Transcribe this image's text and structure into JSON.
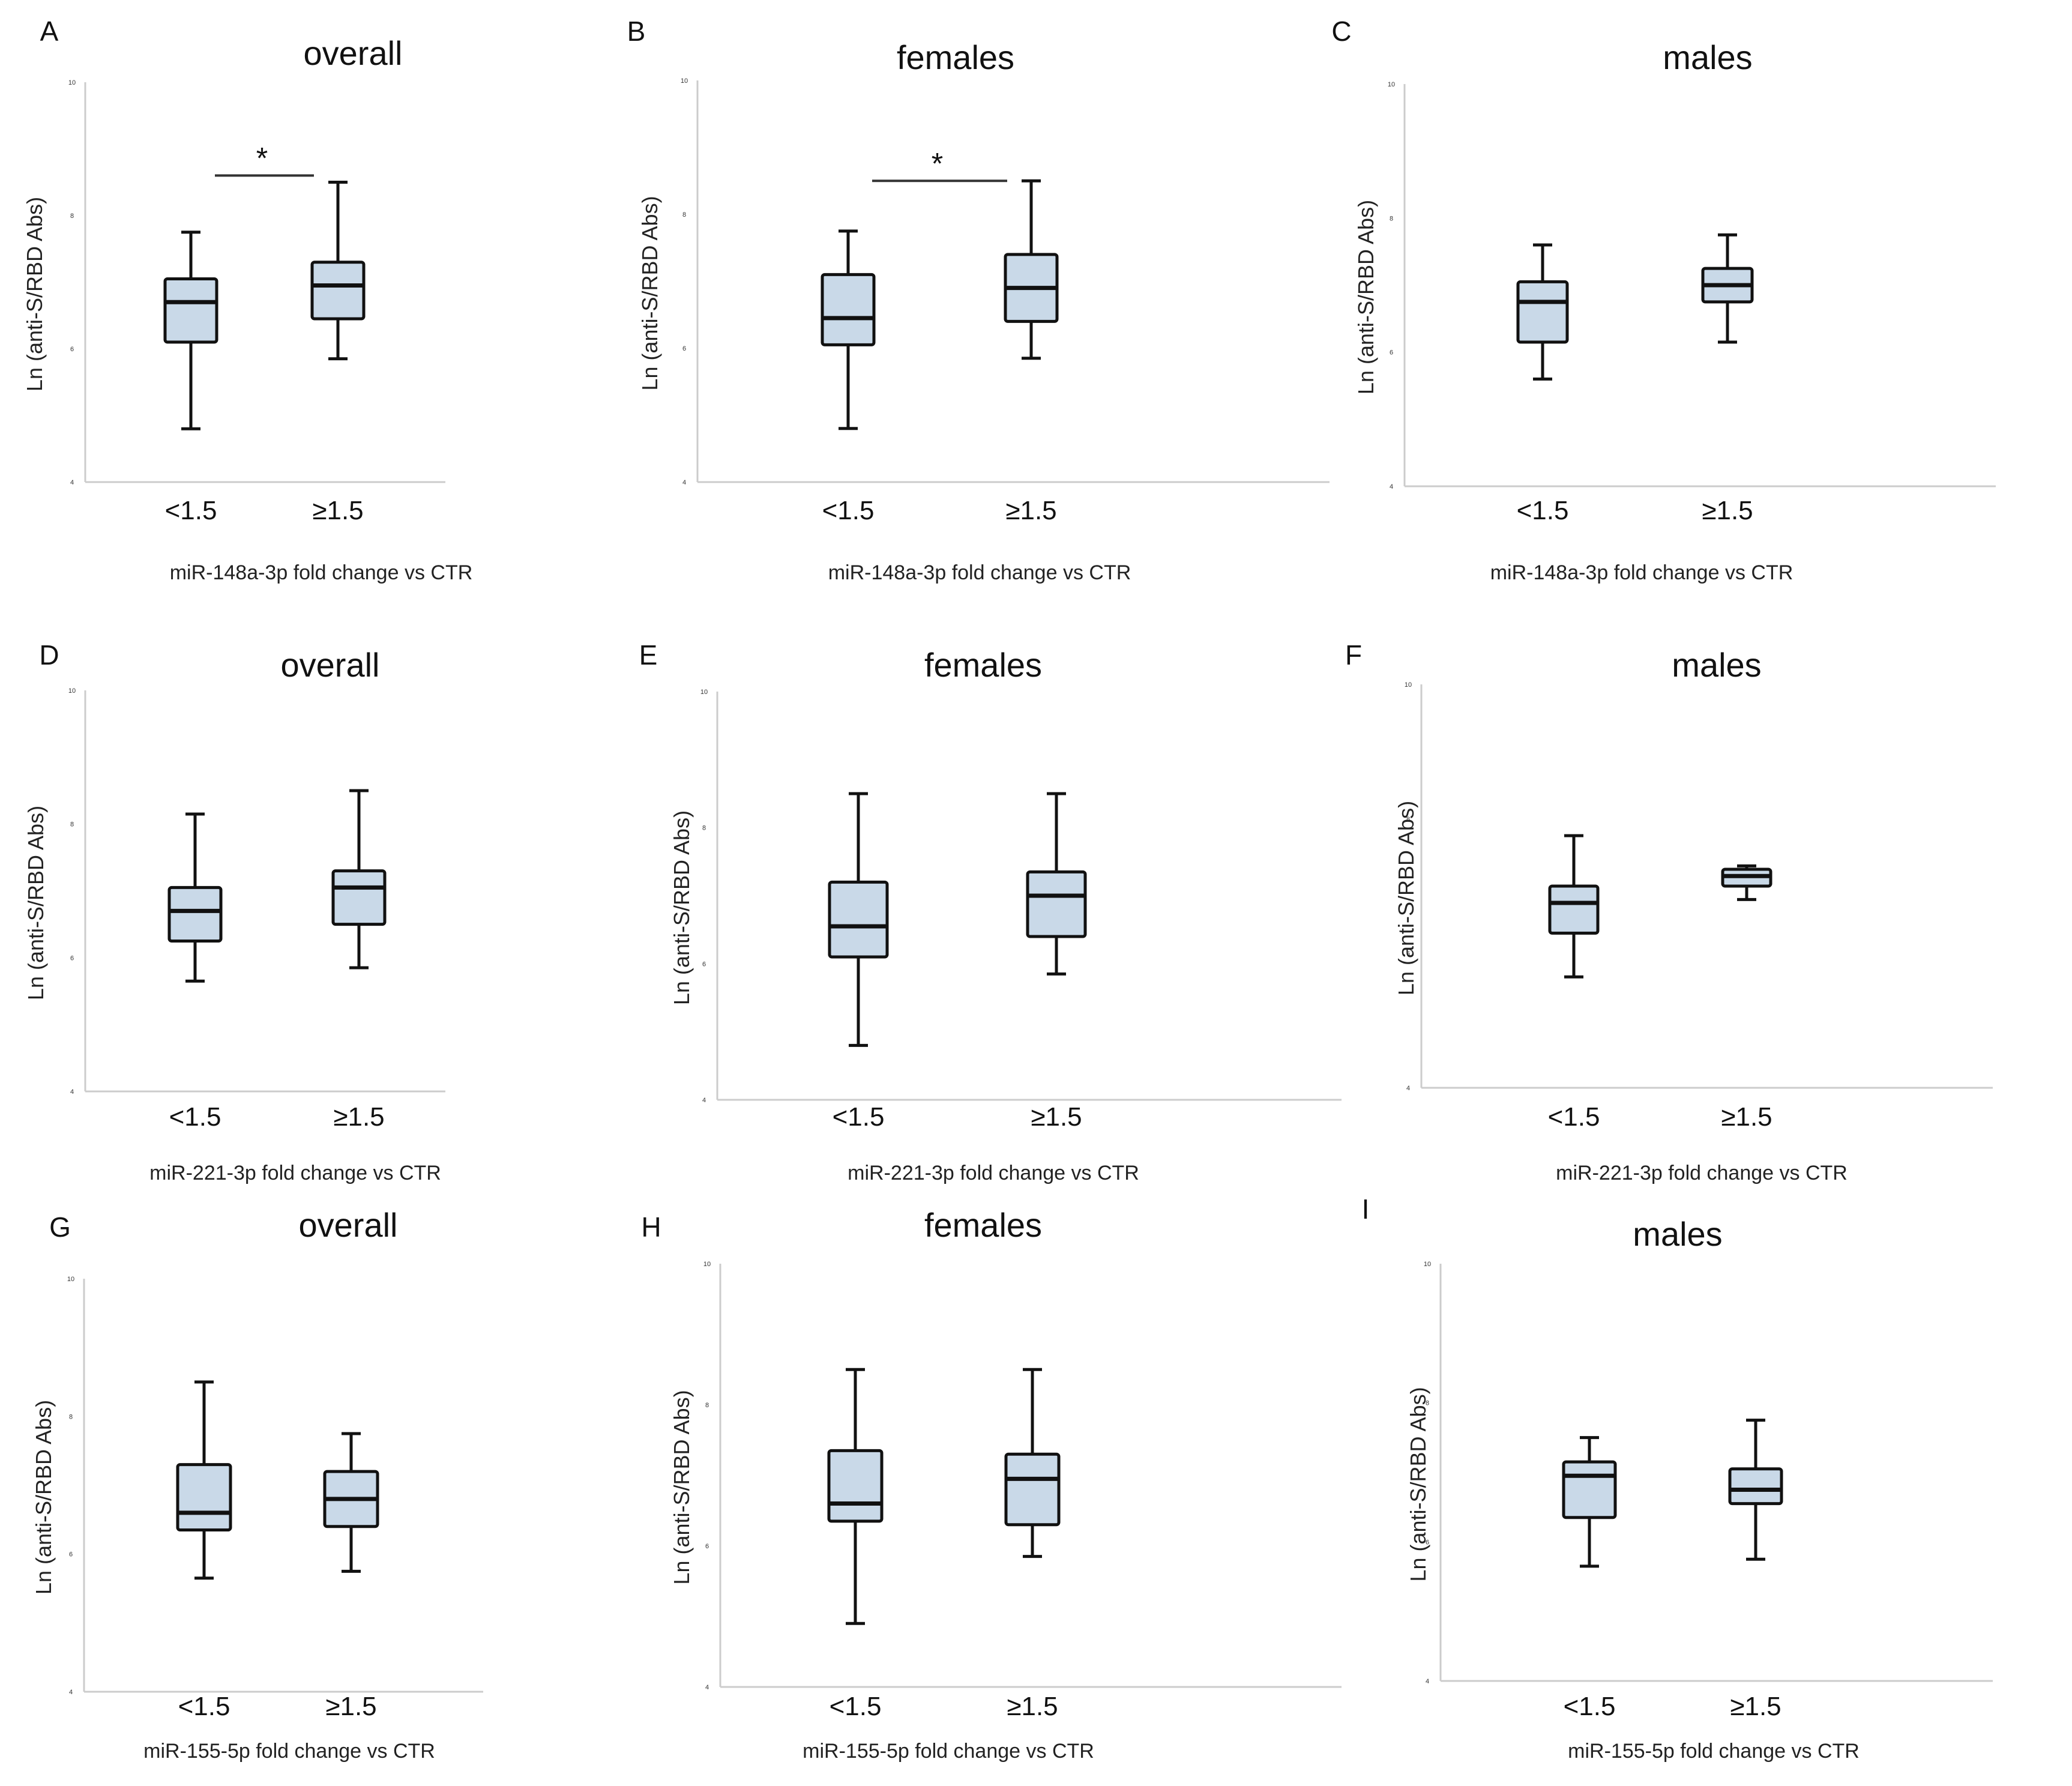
{
  "figure": {
    "background": "#ffffff",
    "box_fill": "#c9d9e8",
    "line_color": "#111111",
    "axis_color": "#cccccc"
  },
  "chart_data": [
    {
      "panel": "A",
      "title": "overall",
      "type": "boxplot",
      "ylabel": "Ln (anti-S/RBD Abs)",
      "xlabel": "miR-148a-3p fold change vs CTR",
      "ylim": [
        4,
        10
      ],
      "yticks": [
        "4",
        "6",
        "8",
        "10"
      ],
      "categories": [
        "<1.5",
        "≥1.5"
      ],
      "boxes": [
        {
          "min": 4.8,
          "q1": 6.1,
          "median": 6.7,
          "q3": 7.05,
          "max": 7.75
        },
        {
          "min": 5.85,
          "q1": 6.45,
          "median": 6.95,
          "q3": 7.3,
          "max": 8.5
        }
      ],
      "significance": {
        "label": "*",
        "y": 8.6
      }
    },
    {
      "panel": "B",
      "title": "females",
      "type": "boxplot",
      "ylabel": "Ln (anti-S/RBD Abs)",
      "xlabel": "miR-148a-3p fold change vs CTR",
      "ylim": [
        4,
        10
      ],
      "yticks": [
        "4",
        "6",
        "8",
        "10"
      ],
      "categories": [
        "<1.5",
        "≥1.5"
      ],
      "boxes": [
        {
          "min": 4.8,
          "q1": 6.05,
          "median": 6.45,
          "q3": 7.1,
          "max": 7.75
        },
        {
          "min": 5.85,
          "q1": 6.4,
          "median": 6.9,
          "q3": 7.4,
          "max": 8.5
        }
      ],
      "significance": {
        "label": "*",
        "y": 8.5
      }
    },
    {
      "panel": "C",
      "title": "males",
      "type": "boxplot",
      "ylabel": "Ln (anti-S/RBD Abs)",
      "xlabel": "miR-148a-3p fold change vs CTR",
      "ylim": [
        4,
        10
      ],
      "yticks": [
        "4",
        "6",
        "8",
        "10"
      ],
      "categories": [
        "<1.5",
        "≥1.5"
      ],
      "boxes": [
        {
          "min": 5.6,
          "q1": 6.15,
          "median": 6.75,
          "q3": 7.05,
          "max": 7.6
        },
        {
          "min": 6.15,
          "q1": 6.75,
          "median": 7.0,
          "q3": 7.25,
          "max": 7.75
        }
      ]
    },
    {
      "panel": "D",
      "title": "overall",
      "type": "boxplot",
      "ylabel": "Ln (anti-S/RBD Abs)",
      "xlabel": "miR-221-3p fold change vs CTR",
      "ylim": [
        4,
        10
      ],
      "yticks": [
        "4",
        "6",
        "8",
        "10"
      ],
      "categories": [
        "<1.5",
        "≥1.5"
      ],
      "boxes": [
        {
          "min": 5.65,
          "q1": 6.25,
          "median": 6.7,
          "q3": 7.05,
          "max": 8.15
        },
        {
          "min": 5.85,
          "q1": 6.5,
          "median": 7.05,
          "q3": 7.3,
          "max": 8.5
        }
      ]
    },
    {
      "panel": "E",
      "title": "females",
      "type": "boxplot",
      "ylabel": "Ln (anti-S/RBD Abs)",
      "xlabel": "miR-221-3p fold change vs CTR",
      "ylim": [
        4,
        10
      ],
      "yticks": [
        "4",
        "6",
        "8",
        "10"
      ],
      "categories": [
        "<1.5",
        "≥1.5"
      ],
      "boxes": [
        {
          "min": 4.8,
          "q1": 6.1,
          "median": 6.55,
          "q3": 7.2,
          "max": 8.5
        },
        {
          "min": 5.85,
          "q1": 6.4,
          "median": 7.0,
          "q3": 7.35,
          "max": 8.5
        }
      ]
    },
    {
      "panel": "F",
      "title": "males",
      "type": "boxplot",
      "ylabel": "Ln (anti-S/RBD Abs)",
      "xlabel": "miR-221-3p fold change vs CTR",
      "ylim": [
        4,
        10
      ],
      "yticks": [
        "4",
        "6",
        "8",
        "10"
      ],
      "categories": [
        "<1.5",
        "≥1.5"
      ],
      "boxes": [
        {
          "min": 5.65,
          "q1": 6.3,
          "median": 6.75,
          "q3": 7.0,
          "max": 7.75
        },
        {
          "min": 6.8,
          "q1": 7.0,
          "median": 7.15,
          "q3": 7.25,
          "max": 7.3
        }
      ]
    },
    {
      "panel": "G",
      "title": "overall",
      "type": "boxplot",
      "ylabel": "Ln (anti-S/RBD Abs)",
      "xlabel": "miR-155-5p fold change vs CTR",
      "ylim": [
        4,
        10
      ],
      "yticks": [
        "4",
        "6",
        "8",
        "10"
      ],
      "categories": [
        "<1.5",
        "≥1.5"
      ],
      "boxes": [
        {
          "min": 5.65,
          "q1": 6.35,
          "median": 6.6,
          "q3": 7.3,
          "max": 8.5
        },
        {
          "min": 5.75,
          "q1": 6.4,
          "median": 6.8,
          "q3": 7.2,
          "max": 7.75
        }
      ]
    },
    {
      "panel": "H",
      "title": "females",
      "type": "boxplot",
      "ylabel": "Ln (anti-S/RBD Abs)",
      "xlabel": "miR-155-5p fold change vs CTR",
      "ylim": [
        4,
        10
      ],
      "yticks": [
        "4",
        "6",
        "8",
        "10"
      ],
      "categories": [
        "<1.5",
        "≥1.5"
      ],
      "boxes": [
        {
          "min": 4.9,
          "q1": 6.35,
          "median": 6.6,
          "q3": 7.35,
          "max": 8.5
        },
        {
          "min": 5.85,
          "q1": 6.3,
          "median": 6.95,
          "q3": 7.3,
          "max": 8.5
        }
      ]
    },
    {
      "panel": "I",
      "title": "males",
      "type": "boxplot",
      "ylabel": "Ln (anti-S/RBD Abs)",
      "xlabel": "miR-155-5p fold change vs CTR",
      "ylim": [
        4,
        10
      ],
      "yticks": [
        "4",
        "6",
        "8",
        "10"
      ],
      "categories": [
        "<1.5",
        "≥1.5"
      ],
      "boxes": [
        {
          "min": 5.65,
          "q1": 6.35,
          "median": 6.95,
          "q3": 7.15,
          "max": 7.5
        },
        {
          "min": 5.75,
          "q1": 6.55,
          "median": 6.75,
          "q3": 7.05,
          "max": 7.75
        }
      ]
    }
  ]
}
